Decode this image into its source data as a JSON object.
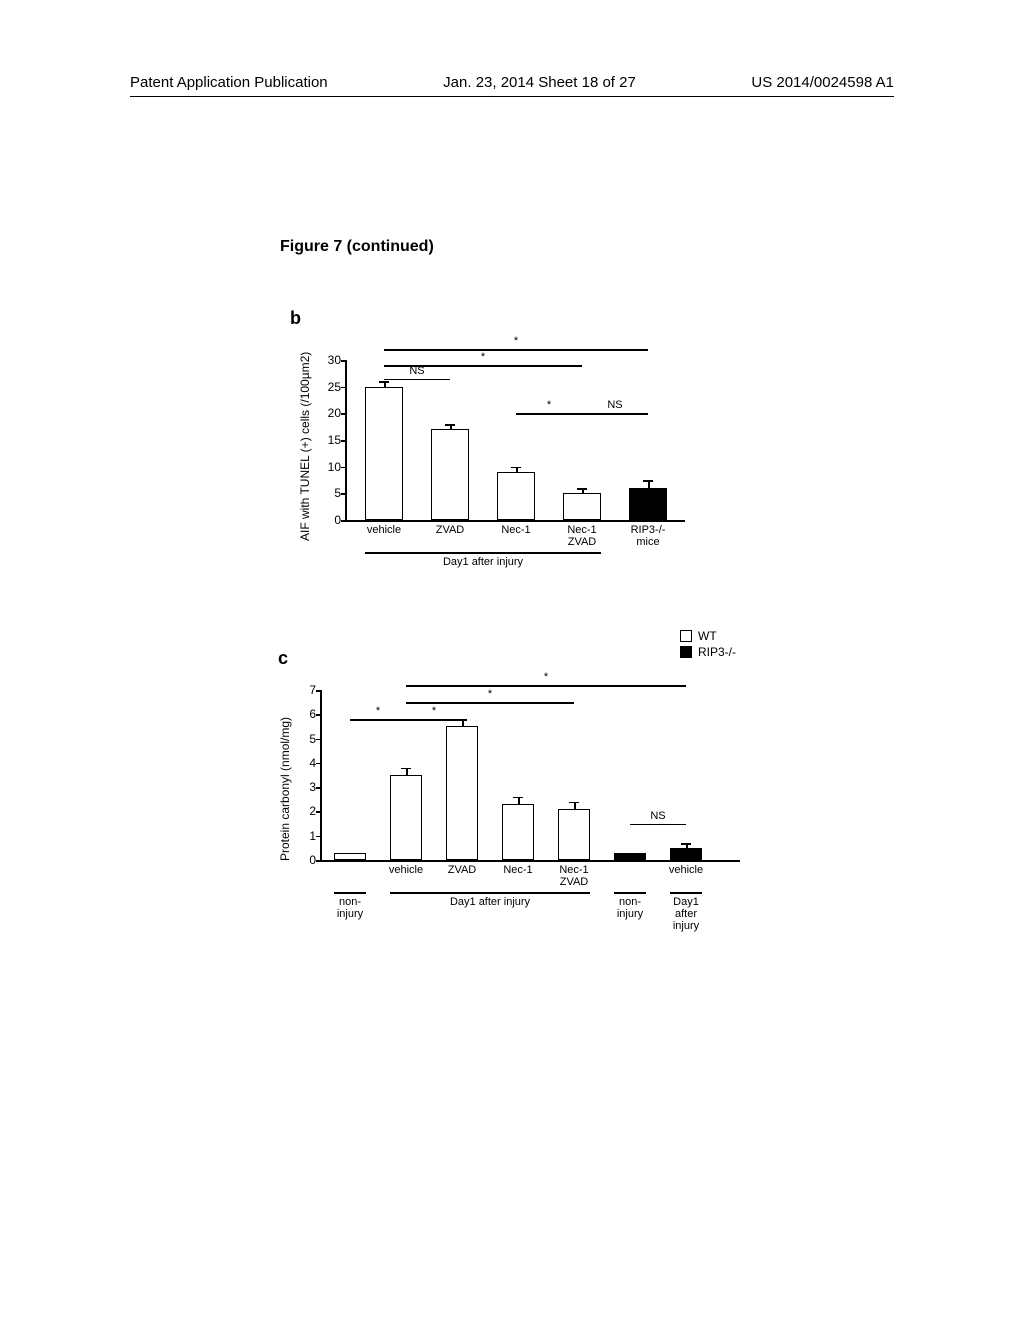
{
  "header": {
    "left": "Patent Application Publication",
    "center": "Jan. 23, 2014  Sheet 18 of 27",
    "right": "US 2014/0024598 A1"
  },
  "figure_title": "Figure 7 (continued)",
  "chart_b": {
    "panel_label": "b",
    "type": "bar",
    "y_label": "AIF with TUNEL (+) cells (/100µm2)",
    "y_max": 30,
    "y_ticks": [
      0,
      5,
      10,
      15,
      20,
      25,
      30
    ],
    "categories": [
      "vehicle",
      "ZVAD",
      "Nec-1",
      "Nec-1\nZVAD",
      "RIP3-/-\nmice"
    ],
    "values": [
      25,
      17,
      9,
      5,
      6
    ],
    "errors": [
      1,
      1,
      1,
      1,
      1.5
    ],
    "bar_colors": [
      "#ffffff",
      "#ffffff",
      "#ffffff",
      "#ffffff",
      "#000000"
    ],
    "x_group_label": "Day1 after injury",
    "sig_lines": [
      {
        "from": 0,
        "to": 4,
        "label": "*",
        "y": 32
      },
      {
        "from": 0,
        "to": 3,
        "label": "*",
        "y": 29
      },
      {
        "from": 0,
        "to": 1,
        "label": "NS",
        "y": 26.5
      },
      {
        "from": 2,
        "to": 3,
        "label": "*",
        "y": 20
      },
      {
        "from": 3,
        "to": 4,
        "label": "NS",
        "y": 20
      }
    ]
  },
  "chart_c": {
    "panel_label": "c",
    "type": "bar",
    "y_label": "Protein carbonyl (nmol/mg)",
    "y_max": 7,
    "y_ticks": [
      0,
      1,
      2,
      3,
      4,
      5,
      6,
      7
    ],
    "categories": [
      "",
      "vehicle",
      "ZVAD",
      "Nec-1",
      "Nec-1\nZVAD",
      "",
      "vehicle"
    ],
    "values": [
      0.3,
      3.5,
      5.5,
      2.3,
      2.1,
      0.3,
      0.5
    ],
    "errors": [
      0,
      0.3,
      0.3,
      0.3,
      0.3,
      0,
      0.2
    ],
    "bar_colors": [
      "#ffffff",
      "#ffffff",
      "#ffffff",
      "#ffffff",
      "#ffffff",
      "#000000",
      "#000000"
    ],
    "bottom_groups": [
      {
        "label": "non-\ninjury",
        "start": 0,
        "end": 0
      },
      {
        "label": "Day1 after injury",
        "start": 1,
        "end": 4
      },
      {
        "label": "non-\ninjury",
        "start": 5,
        "end": 5
      },
      {
        "label": "Day1 after\ninjury",
        "start": 6,
        "end": 6
      }
    ],
    "legend": [
      {
        "color": "#ffffff",
        "label": "WT"
      },
      {
        "color": "#000000",
        "label": "RIP3-/-"
      }
    ],
    "sig_lines": [
      {
        "from": 1,
        "to": 6,
        "label": "*",
        "y": 7.2
      },
      {
        "from": 1,
        "to": 4,
        "label": "*",
        "y": 6.5
      },
      {
        "from": 0,
        "to": 1,
        "label": "*",
        "y": 5.8
      },
      {
        "from": 1,
        "to": 2,
        "label": "*",
        "y": 5.8
      },
      {
        "from": 5,
        "to": 6,
        "label": "NS",
        "y": 1.5
      }
    ]
  }
}
